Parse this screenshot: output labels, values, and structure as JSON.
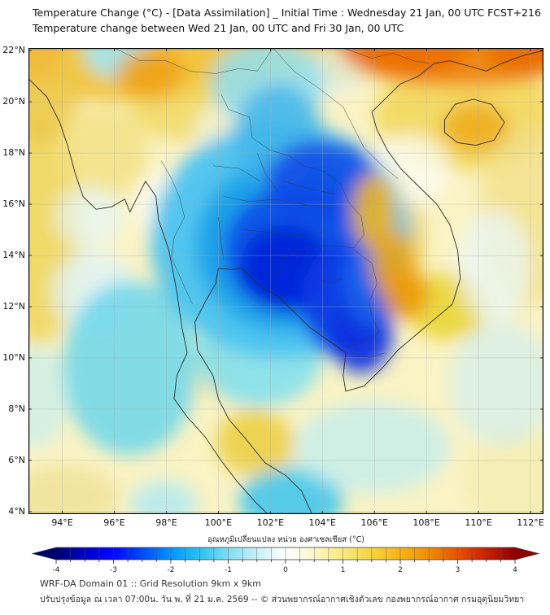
{
  "title": {
    "line1": "Temperature Change (°C) - [Data Assimilation] _ Initial Time : Wednesday 21 Jan, 00 UTC FCST+216",
    "line2": "Temperature change between Wed 21 Jan, 00 UTC and Fri 30 Jan, 00 UTC"
  },
  "map": {
    "lon_min": 92.7,
    "lon_max": 112.5,
    "lat_min": 3.9,
    "lat_max": 22.1,
    "x_ticks": [
      {
        "value": 94,
        "label": "94°E"
      },
      {
        "value": 96,
        "label": "96°E"
      },
      {
        "value": 98,
        "label": "98°E"
      },
      {
        "value": 100,
        "label": "100°E"
      },
      {
        "value": 102,
        "label": "102°E"
      },
      {
        "value": 104,
        "label": "104°E"
      },
      {
        "value": 106,
        "label": "106°E"
      },
      {
        "value": 108,
        "label": "108°E"
      },
      {
        "value": 110,
        "label": "110°E"
      },
      {
        "value": 112,
        "label": "112°E"
      }
    ],
    "y_ticks": [
      {
        "value": 22,
        "label": "22°N"
      },
      {
        "value": 20,
        "label": "20°N"
      },
      {
        "value": 18,
        "label": "18°N"
      },
      {
        "value": 16,
        "label": "16°N"
      },
      {
        "value": 14,
        "label": "14°N"
      },
      {
        "value": 12,
        "label": "12°N"
      },
      {
        "value": 10,
        "label": "10°N"
      },
      {
        "value": 8,
        "label": "8°N"
      },
      {
        "value": 6,
        "label": "6°N"
      },
      {
        "value": 4,
        "label": "4°N"
      }
    ],
    "grid_color": "#aaaaaa",
    "coast_color": "#2b2b2b",
    "border_color": "#3a3a3a",
    "frame_color": "#000000",
    "field": {
      "base": "#faf3c4",
      "blobs": [
        [
          97.0,
          21.6,
          5.5,
          1.6,
          "#f2c53d",
          1.0
        ],
        [
          104.0,
          21.9,
          3.0,
          1.2,
          "#f0cf4a",
          0.95
        ],
        [
          93.1,
          15.0,
          1.6,
          4.5,
          "#efd75e",
          0.9
        ],
        [
          93.2,
          20.3,
          1.4,
          2.0,
          "#edc94e",
          0.9
        ],
        [
          93.0,
          21.8,
          1.0,
          0.9,
          "#efb93a",
          0.8
        ],
        [
          109.5,
          19.5,
          3.5,
          2.2,
          "#f2d655",
          0.85
        ],
        [
          111.8,
          15.5,
          1.8,
          3.5,
          "#f2e08a",
          0.8
        ],
        [
          106.4,
          14.6,
          1.5,
          2.8,
          "#f2cf55",
          0.9
        ],
        [
          108.8,
          12.0,
          1.6,
          1.3,
          "#e9d42a",
          0.85
        ],
        [
          101.4,
          6.7,
          1.5,
          1.3,
          "#eccf46",
          0.9
        ],
        [
          94.0,
          4.6,
          2.2,
          1.2,
          "#f0e29a",
          0.85
        ],
        [
          111.6,
          5.2,
          2.2,
          2.0,
          "#f4edb2",
          0.8
        ],
        [
          99.9,
          9.4,
          1.0,
          1.1,
          "#f0e6a0",
          0.8
        ],
        [
          98.8,
          19.6,
          2.2,
          1.1,
          "#f0d75e",
          0.8
        ],
        [
          95.5,
          18.0,
          1.8,
          1.8,
          "#f2df7c",
          0.75
        ],
        [
          98.6,
          15.9,
          1.8,
          1.5,
          "#fbfdf4",
          0.85
        ],
        [
          107.3,
          17.3,
          1.6,
          1.4,
          "#fbfcf2",
          0.8
        ],
        [
          110.6,
          13.6,
          1.4,
          2.2,
          "#e8f7fa",
          0.75
        ],
        [
          95.2,
          12.6,
          1.6,
          1.6,
          "#dff4f8",
          0.8
        ],
        [
          95.0,
          15.5,
          1.3,
          1.2,
          "#e4f6f8",
          0.7
        ],
        [
          104.4,
          21.2,
          1.2,
          0.9,
          "#def2f6",
          0.7
        ],
        [
          100.3,
          18.8,
          1.2,
          1.2,
          "#f4f9ee",
          0.7
        ],
        [
          96.1,
          22.0,
          1.3,
          1.1,
          "#9fe5f2",
          0.9
        ],
        [
          96.6,
          9.6,
          2.6,
          3.4,
          "#62d5ee",
          0.8
        ],
        [
          101.6,
          10.1,
          2.4,
          2.0,
          "#7ddff0",
          0.85
        ],
        [
          102.8,
          4.4,
          2.0,
          1.3,
          "#43c6ec",
          0.9
        ],
        [
          97.9,
          4.3,
          1.3,
          0.9,
          "#aeeaf4",
          0.8
        ],
        [
          101.9,
          20.7,
          2.2,
          1.7,
          "#8fdff2",
          0.85
        ],
        [
          110.9,
          9.0,
          2.0,
          2.4,
          "#c9eef7",
          0.6
        ],
        [
          93.0,
          8.5,
          1.2,
          2.0,
          "#bdeef6",
          0.6
        ],
        [
          105.9,
          6.5,
          3.0,
          1.8,
          "#b8ecf6",
          0.65
        ],
        [
          102.4,
          14.6,
          5.0,
          4.6,
          "#49c3ef",
          0.95
        ],
        [
          102.7,
          14.4,
          3.6,
          3.4,
          "#18a0e8",
          0.9
        ],
        [
          102.3,
          18.7,
          1.7,
          2.0,
          "#3fb4ea",
          0.8
        ],
        [
          102.9,
          14.2,
          2.7,
          2.5,
          "#0a52e8",
          0.95
        ],
        [
          104.0,
          16.9,
          2.2,
          1.6,
          "#0d47e6",
          0.85
        ],
        [
          102.6,
          13.5,
          1.8,
          1.7,
          "#0626d8",
          0.95
        ],
        [
          104.9,
          12.2,
          1.7,
          2.3,
          "#0a3ae4",
          0.9
        ],
        [
          105.5,
          11.0,
          1.2,
          1.6,
          "#0930e0",
          0.9
        ],
        [
          106.0,
          13.0,
          1.2,
          1.8,
          "#1668ea",
          0.8
        ],
        [
          107.2,
          22.4,
          2.6,
          1.4,
          "#e03000",
          0.95
        ],
        [
          111.9,
          22.2,
          1.6,
          1.2,
          "#d42600",
          0.95
        ],
        [
          109.3,
          22.0,
          4.5,
          1.4,
          "#ef7a00",
          0.85
        ],
        [
          97.4,
          21.1,
          1.3,
          1.0,
          "#f09c10",
          0.8
        ],
        [
          109.9,
          19.0,
          1.3,
          0.95,
          "#efac1a",
          0.85
        ],
        [
          106.0,
          15.7,
          0.85,
          1.5,
          "#eeb21e",
          0.9
        ],
        [
          106.7,
          13.7,
          0.85,
          1.3,
          "#eda714",
          0.9
        ],
        [
          107.2,
          12.5,
          0.9,
          1.0,
          "#ec9a0a",
          0.9
        ]
      ]
    },
    "coastlines": [
      [
        [
          92.7,
          20.9
        ],
        [
          93.4,
          20.2
        ],
        [
          93.9,
          19.2
        ],
        [
          94.2,
          18.3
        ],
        [
          94.5,
          17.2
        ],
        [
          94.8,
          16.3
        ],
        [
          95.3,
          15.8
        ],
        [
          95.9,
          15.9
        ],
        [
          96.4,
          16.2
        ],
        [
          96.6,
          15.7
        ],
        [
          97.2,
          16.9
        ],
        [
          97.6,
          16.3
        ],
        [
          97.7,
          15.4
        ],
        [
          98.1,
          14.2
        ],
        [
          98.4,
          12.6
        ],
        [
          98.6,
          11.2
        ],
        [
          98.8,
          10.2
        ],
        [
          98.4,
          9.3
        ],
        [
          98.3,
          8.4
        ],
        [
          98.8,
          7.7
        ],
        [
          99.5,
          6.9
        ],
        [
          100.1,
          6.0
        ],
        [
          100.7,
          5.2
        ],
        [
          101.4,
          4.4
        ],
        [
          101.9,
          3.9
        ]
      ],
      [
        [
          103.6,
          3.9
        ],
        [
          103.2,
          4.8
        ],
        [
          102.6,
          5.4
        ],
        [
          101.8,
          5.9
        ],
        [
          101.0,
          6.9
        ],
        [
          100.4,
          7.6
        ],
        [
          100.0,
          8.4
        ],
        [
          99.8,
          9.3
        ],
        [
          99.2,
          10.3
        ],
        [
          99.1,
          11.4
        ],
        [
          99.5,
          12.2
        ],
        [
          99.9,
          12.9
        ],
        [
          100.0,
          13.5
        ],
        [
          100.5,
          13.45
        ],
        [
          100.9,
          13.5
        ]
      ],
      [
        [
          100.9,
          13.5
        ],
        [
          101.6,
          12.8
        ],
        [
          102.3,
          12.4
        ],
        [
          102.9,
          11.8
        ],
        [
          103.5,
          11.2
        ],
        [
          104.2,
          10.7
        ],
        [
          104.9,
          10.2
        ],
        [
          104.8,
          9.3
        ],
        [
          104.9,
          8.7
        ],
        [
          105.6,
          8.9
        ],
        [
          106.3,
          9.6
        ],
        [
          106.9,
          10.3
        ],
        [
          107.6,
          10.9
        ],
        [
          108.3,
          11.5
        ],
        [
          109.0,
          12.1
        ],
        [
          109.3,
          13.1
        ],
        [
          109.2,
          14.2
        ],
        [
          108.9,
          15.2
        ],
        [
          108.4,
          16.0
        ],
        [
          107.7,
          16.7
        ],
        [
          107.0,
          17.4
        ],
        [
          106.5,
          18.1
        ],
        [
          106.1,
          18.9
        ],
        [
          105.9,
          19.6
        ],
        [
          106.5,
          20.2
        ],
        [
          107.0,
          20.7
        ],
        [
          107.7,
          21.0
        ],
        [
          108.3,
          21.5
        ],
        [
          108.9,
          21.6
        ],
        [
          109.6,
          21.4
        ],
        [
          110.3,
          21.2
        ],
        [
          110.9,
          21.5
        ],
        [
          111.7,
          21.8
        ],
        [
          112.5,
          22.0
        ]
      ],
      [
        [
          108.7,
          19.3
        ],
        [
          109.1,
          19.9
        ],
        [
          109.8,
          20.1
        ],
        [
          110.5,
          19.9
        ],
        [
          111.0,
          19.2
        ],
        [
          110.6,
          18.5
        ],
        [
          109.9,
          18.3
        ],
        [
          109.2,
          18.4
        ],
        [
          108.7,
          18.8
        ],
        [
          108.7,
          19.3
        ]
      ]
    ],
    "borders": [
      [
        [
          96.0,
          22.1
        ],
        [
          97.0,
          21.6
        ],
        [
          98.0,
          21.6
        ],
        [
          98.9,
          21.2
        ],
        [
          99.9,
          21.1
        ],
        [
          100.8,
          21.3
        ],
        [
          101.5,
          21.2
        ],
        [
          102.1,
          22.1
        ]
      ],
      [
        [
          102.1,
          22.1
        ],
        [
          102.9,
          21.2
        ],
        [
          103.9,
          20.5
        ],
        [
          104.8,
          19.8
        ],
        [
          105.2,
          19.0
        ],
        [
          105.6,
          18.2
        ],
        [
          106.3,
          17.5
        ],
        [
          106.9,
          17.0
        ]
      ],
      [
        [
          104.8,
          22.1
        ],
        [
          105.9,
          21.7
        ],
        [
          106.7,
          21.9
        ],
        [
          107.5,
          21.6
        ],
        [
          108.1,
          21.5
        ]
      ],
      [
        [
          100.1,
          20.3
        ],
        [
          100.4,
          19.7
        ],
        [
          101.2,
          19.4
        ],
        [
          101.3,
          18.6
        ],
        [
          102.0,
          18.1
        ],
        [
          102.7,
          17.9
        ],
        [
          103.3,
          17.5
        ],
        [
          104.0,
          17.3
        ],
        [
          104.7,
          16.8
        ],
        [
          105.0,
          16.1
        ],
        [
          105.5,
          15.5
        ],
        [
          105.6,
          14.8
        ],
        [
          105.2,
          14.3
        ],
        [
          104.3,
          14.4
        ],
        [
          103.4,
          14.3
        ],
        [
          102.5,
          13.9
        ],
        [
          102.3,
          13.2
        ]
      ],
      [
        [
          105.1,
          14.3
        ],
        [
          105.9,
          13.7
        ],
        [
          106.1,
          12.9
        ],
        [
          105.8,
          12.2
        ],
        [
          105.9,
          11.6
        ],
        [
          106.2,
          11.0
        ],
        [
          105.5,
          10.6
        ],
        [
          105.0,
          10.4
        ]
      ],
      [
        [
          97.8,
          17.7
        ],
        [
          98.2,
          17.0
        ],
        [
          98.5,
          16.3
        ],
        [
          98.7,
          15.5
        ],
        [
          98.3,
          14.7
        ],
        [
          98.2,
          13.9
        ],
        [
          98.6,
          13.0
        ],
        [
          99.0,
          12.1
        ]
      ],
      [
        [
          99.8,
          17.5
        ],
        [
          100.8,
          17.4
        ],
        [
          101.6,
          16.9
        ]
      ],
      [
        [
          100.2,
          16.3
        ],
        [
          101.2,
          16.1
        ],
        [
          102.2,
          16.2
        ],
        [
          103.2,
          16.0
        ],
        [
          104.2,
          15.9
        ]
      ],
      [
        [
          101.0,
          15.0
        ],
        [
          102.0,
          14.9
        ],
        [
          103.0,
          14.8
        ],
        [
          104.0,
          14.9
        ]
      ],
      [
        [
          100.0,
          15.5
        ],
        [
          100.1,
          14.6
        ],
        [
          100.2,
          13.8
        ]
      ],
      [
        [
          102.5,
          16.9
        ],
        [
          103.5,
          16.6
        ],
        [
          104.5,
          16.4
        ]
      ],
      [
        [
          101.5,
          18.0
        ],
        [
          101.8,
          17.2
        ],
        [
          102.3,
          16.5
        ]
      ],
      [
        [
          103.8,
          13.1
        ],
        [
          104.3,
          12.9
        ],
        [
          104.8,
          13.1
        ]
      ],
      [
        [
          105.2,
          10.2
        ],
        [
          105.8,
          10.0
        ],
        [
          106.4,
          10.2
        ]
      ]
    ]
  },
  "colorbar": {
    "label": "อุณหภูมิเปลี่ยนแปลง หน่วย องศาเซลเซียส (°C)",
    "min": -4,
    "max": 4,
    "major_ticks": [
      -4,
      -3,
      -2,
      -1,
      0,
      1,
      2,
      3,
      4
    ],
    "tick_labels": [
      "-4",
      "-3",
      "-2",
      "-1",
      "0",
      "1",
      "2",
      "3",
      "4"
    ],
    "minor_step": 0.25,
    "stops": [
      [
        0.0,
        "#00006e"
      ],
      [
        0.0625,
        "#0000c8"
      ],
      [
        0.125,
        "#0008ff"
      ],
      [
        0.1875,
        "#0048ff"
      ],
      [
        0.25,
        "#0096ff"
      ],
      [
        0.3125,
        "#28c3f2"
      ],
      [
        0.375,
        "#7fdef4"
      ],
      [
        0.4375,
        "#c6f0fa"
      ],
      [
        0.5,
        "#ffffff"
      ],
      [
        0.5625,
        "#fcf6c8"
      ],
      [
        0.625,
        "#f9e97e"
      ],
      [
        0.6875,
        "#f7d33c"
      ],
      [
        0.75,
        "#f5b414"
      ],
      [
        0.8125,
        "#f18c04"
      ],
      [
        0.875,
        "#e65100"
      ],
      [
        0.9375,
        "#cc2000"
      ],
      [
        1.0,
        "#8f0000"
      ]
    ],
    "left_arrow_color": "#00006e",
    "right_arrow_color": "#8f0000",
    "divider_color": "#555555"
  },
  "footer": {
    "line1": "WRF-DA Domain 01 :: Grid Resolution 9km x 9km",
    "line2": "ปรับปรุงข้อมูล ณ เวลา 07:00น. วัน พ. ที่ 21 ม.ค. 2569 -- © ส่วนพยากรณ์อากาศเชิงตัวเลข กองพยากรณ์อากาศ กรมอุตุนิยมวิทยา"
  }
}
